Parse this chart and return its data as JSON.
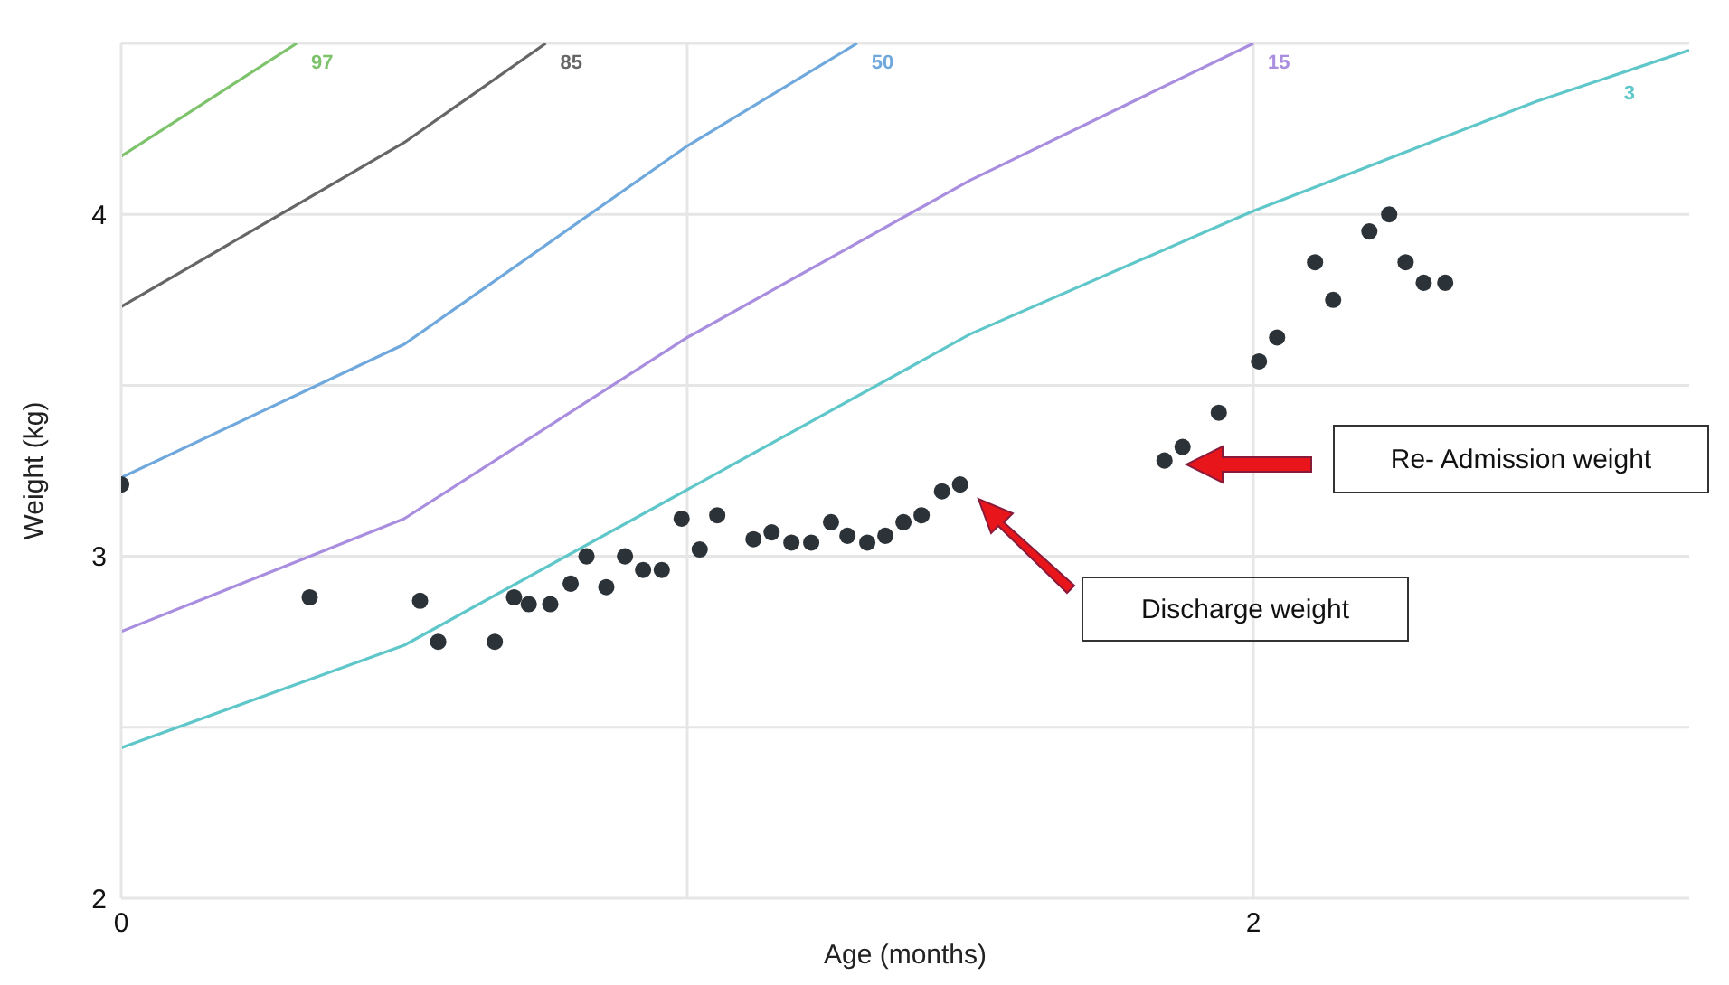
{
  "chart_data": {
    "type": "line",
    "xlabel": "Age (months)",
    "ylabel": "Weight (kg)",
    "xlim": [
      0,
      2.77
    ],
    "xticks": [
      0,
      {
        "value": 1,
        "label": null
      },
      2
    ],
    "ylim": [
      2,
      4.5
    ],
    "yticks": [
      2,
      {
        "value": 2.5,
        "label": null
      },
      3,
      {
        "value": 3.5,
        "label": null
      },
      4,
      {
        "value": 4.5,
        "label": null
      }
    ],
    "grid": true,
    "series": [
      {
        "name": "97",
        "color": "#7dc36b",
        "marker": "none",
        "x": [
          0,
          0.31
        ],
        "values": [
          4.17,
          4.5
        ]
      },
      {
        "name": "85",
        "color": "#666666",
        "marker": "none",
        "x": [
          0,
          0.5,
          0.75
        ],
        "values": [
          3.73,
          4.21,
          4.5
        ]
      },
      {
        "name": "50",
        "color": "#6fa8dc",
        "marker": "none",
        "x": [
          0,
          0.5,
          1,
          1.3
        ],
        "values": [
          3.23,
          3.62,
          4.2,
          4.5
        ]
      },
      {
        "name": "15",
        "color": "#a98ee0",
        "marker": "none",
        "x": [
          0,
          0.5,
          1,
          1.5,
          2
        ],
        "values": [
          2.78,
          3.11,
          3.64,
          4.1,
          4.5
        ]
      },
      {
        "name": "3",
        "color": "#5fc7c9",
        "marker": "none",
        "x": [
          0,
          0.5,
          1.5,
          2,
          2.5,
          2.77
        ],
        "values": [
          2.44,
          2.74,
          3.65,
          4.01,
          4.33,
          4.48
        ]
      },
      {
        "type": "scatter",
        "color": "#2b3238",
        "marker": "circle",
        "x": [
          0,
          0.333,
          0.528,
          0.56,
          0.66,
          0.694,
          0.72,
          0.758,
          0.794,
          0.822,
          0.857,
          0.89,
          0.922,
          0.955,
          0.99,
          1.022,
          1.053,
          1.117,
          1.149,
          1.184,
          1.219,
          1.254,
          1.283,
          1.318,
          1.35,
          1.382,
          1.414,
          1.45,
          1.482,
          1.843,
          1.875,
          1.939,
          2.01,
          2.042,
          2.109,
          2.141,
          2.205,
          2.24,
          2.269,
          2.301,
          2.339
        ],
        "values": [
          3.21,
          2.88,
          2.87,
          2.75,
          2.75,
          2.88,
          2.86,
          2.86,
          2.92,
          3.0,
          2.91,
          3.0,
          2.96,
          2.96,
          3.11,
          3.02,
          3.12,
          3.05,
          3.07,
          3.04,
          3.04,
          3.1,
          3.06,
          3.04,
          3.06,
          3.1,
          3.12,
          3.19,
          3.21,
          3.28,
          3.32,
          3.42,
          3.57,
          3.64,
          3.86,
          3.75,
          3.95,
          4.0,
          3.86,
          3.8,
          3.8
        ]
      }
    ],
    "annotations": [
      "Discharge weight",
      "Re- Admission weight"
    ]
  }
}
